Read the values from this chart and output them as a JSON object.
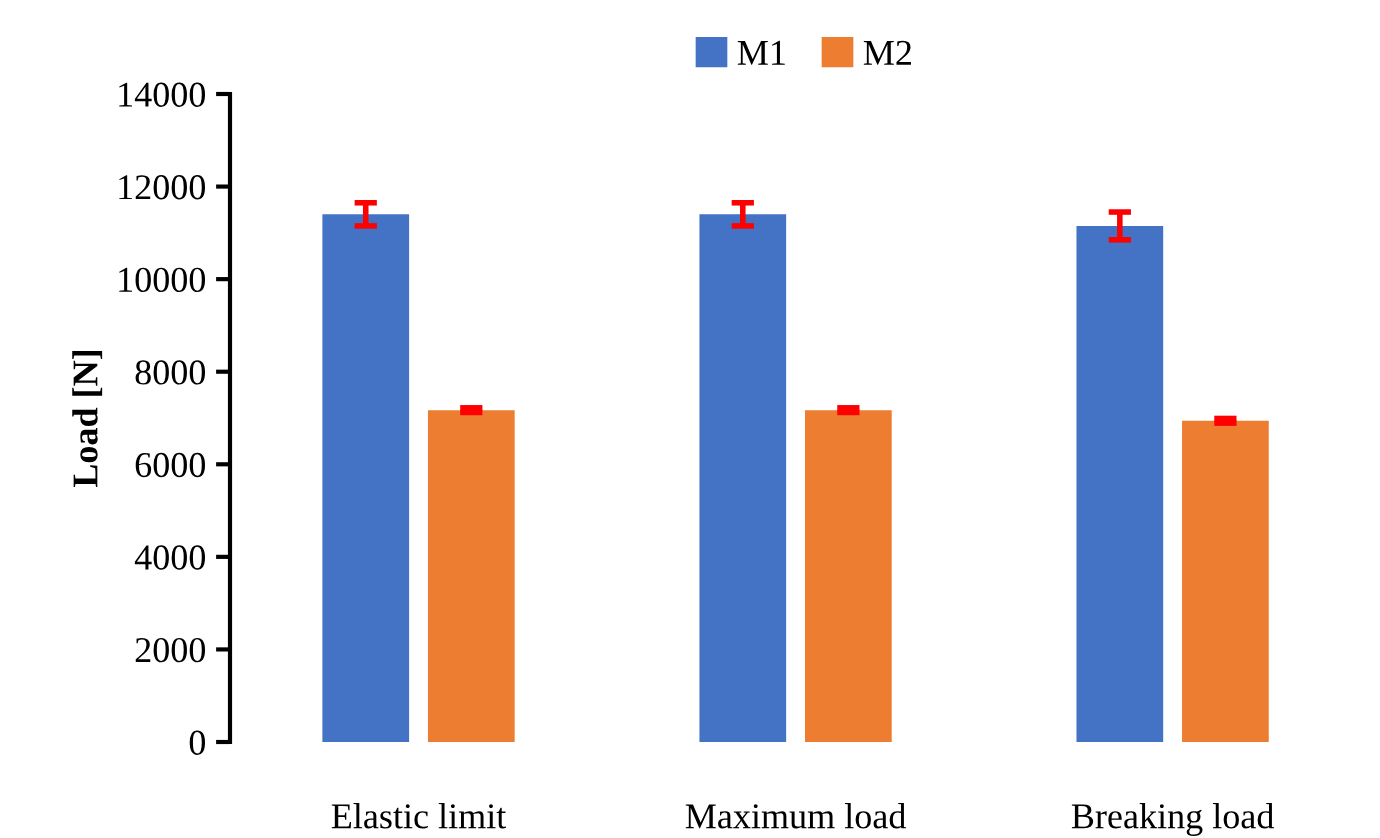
{
  "chart_data": {
    "type": "bar",
    "ylabel": "Load [N]",
    "categories": [
      "Elastic limit",
      "Maximum load",
      "Breaking load"
    ],
    "series": [
      {
        "name": "M1",
        "color": "#4472c4",
        "values": [
          11400,
          11400,
          11150
        ],
        "errors": [
          250,
          250,
          300
        ]
      },
      {
        "name": "M2",
        "color": "#ed7d31",
        "values": [
          7170,
          7170,
          6940
        ],
        "errors": [
          50,
          50,
          50
        ]
      }
    ],
    "ylim": [
      0,
      14000
    ],
    "yticks": [
      0,
      2000,
      4000,
      6000,
      8000,
      10000,
      12000,
      14000
    ],
    "grid": false,
    "legend": "top"
  }
}
